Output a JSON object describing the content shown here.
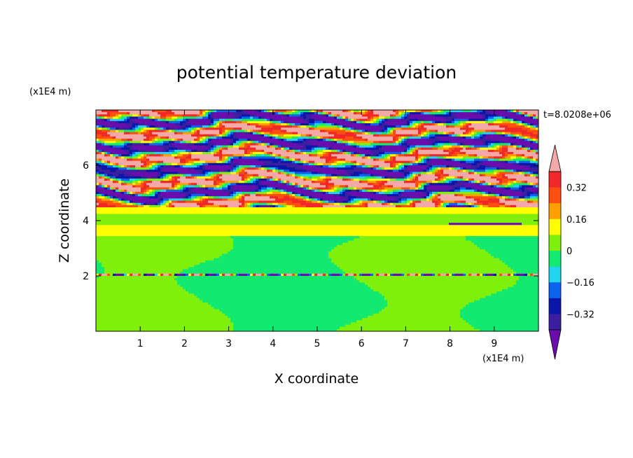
{
  "chart_data": {
    "type": "heatmap",
    "title": "potential temperature deviation",
    "xlabel": "X coordinate",
    "ylabel": "Z coordinate",
    "x_unit": "(x1E4 m)",
    "y_unit": "(x1E4 m)",
    "time_label": "t=8.0208e+06",
    "xlim": [
      0,
      10
    ],
    "ylim": [
      0,
      8
    ],
    "x_ticks": [
      1,
      2,
      3,
      4,
      5,
      6,
      7,
      8,
      9
    ],
    "y_ticks": [
      2,
      4,
      6
    ],
    "colorbar": {
      "levels": [
        -0.4,
        -0.32,
        -0.24,
        -0.16,
        -0.08,
        0,
        0.08,
        0.16,
        0.24,
        0.32,
        0.4
      ],
      "labeled_levels": [
        "0.32",
        "0.16",
        "0",
        "-0.16",
        "-0.32"
      ],
      "colors": [
        "#6a0dad",
        "#3b1fa0",
        "#0a16a8",
        "#0a64ee",
        "#22d4f0",
        "#13e86f",
        "#7ef00b",
        "#ffff00",
        "#ff9f00",
        "#ff4f10",
        "#f02828",
        "#f4a9a8"
      ],
      "extend": "both"
    },
    "layers": [
      {
        "z_range": [
          0,
          3.5
        ],
        "description_value": 0.0,
        "band_colors": [
          "#13e86f",
          "#7ef00b"
        ]
      },
      {
        "z_range": [
          2.0,
          2.05
        ],
        "feature": "thin inversion line",
        "value": 0.3
      },
      {
        "z_range": [
          3.4,
          3.8
        ],
        "value": 0.12
      },
      {
        "z_range": [
          3.8,
          4.2
        ],
        "value": 0.04
      },
      {
        "z_range": [
          4.2,
          4.5
        ],
        "value": 0.12
      },
      {
        "z_range": [
          4.5,
          8.0
        ],
        "value_range": [
          -0.45,
          0.45
        ],
        "pattern": "alternating turbulent bands"
      }
    ]
  }
}
